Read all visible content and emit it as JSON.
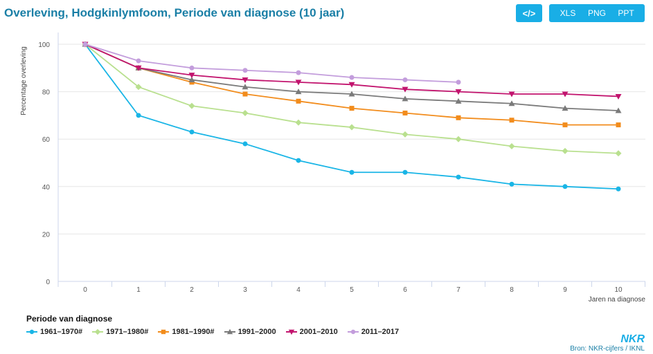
{
  "title": "Overleving, Hodgkinlymfoom, Periode van diagnose (10 jaar)",
  "toolbar": {
    "code_label": "</>",
    "xls": "XLS",
    "png": "PNG",
    "ppt": "PPT"
  },
  "legend_title": "Periode van diagnose",
  "brand": "NKR",
  "source": "Bron: NKR-cijfers / IKNL",
  "chart_data": {
    "type": "line",
    "xlabel": "Jaren na diagnose",
    "ylabel": "Percentage overleving",
    "x": [
      0,
      1,
      2,
      3,
      4,
      5,
      6,
      7,
      8,
      9,
      10
    ],
    "xlim": [
      0,
      10
    ],
    "ylim": [
      0,
      100
    ],
    "yticks": [
      0,
      20,
      40,
      60,
      80,
      100
    ],
    "series": [
      {
        "name": "1961–1970#",
        "color": "#19b5e6",
        "marker": "circle",
        "values": [
          100,
          70,
          63,
          58,
          51,
          46,
          46,
          44,
          41,
          40,
          39
        ]
      },
      {
        "name": "1971–1980#",
        "color": "#b9e08f",
        "marker": "diamond",
        "values": [
          100,
          82,
          74,
          71,
          67,
          65,
          62,
          60,
          57,
          55,
          54
        ]
      },
      {
        "name": "1981–1990#",
        "color": "#f28c1c",
        "marker": "square",
        "values": [
          100,
          90,
          84,
          79,
          76,
          73,
          71,
          69,
          68,
          66,
          66
        ]
      },
      {
        "name": "1991–2000",
        "color": "#7a7a7a",
        "marker": "triangle",
        "values": [
          100,
          90,
          85,
          82,
          80,
          79,
          77,
          76,
          75,
          73,
          72
        ]
      },
      {
        "name": "2001–2010",
        "color": "#c2146e",
        "marker": "triangle-down",
        "values": [
          100,
          90,
          87,
          85,
          84,
          83,
          81,
          80,
          79,
          79,
          78
        ]
      },
      {
        "name": "2011–2017",
        "color": "#c39ddc",
        "marker": "circle",
        "values": [
          100,
          93,
          90,
          89,
          88,
          86,
          85,
          84,
          null,
          null,
          null
        ]
      }
    ]
  }
}
